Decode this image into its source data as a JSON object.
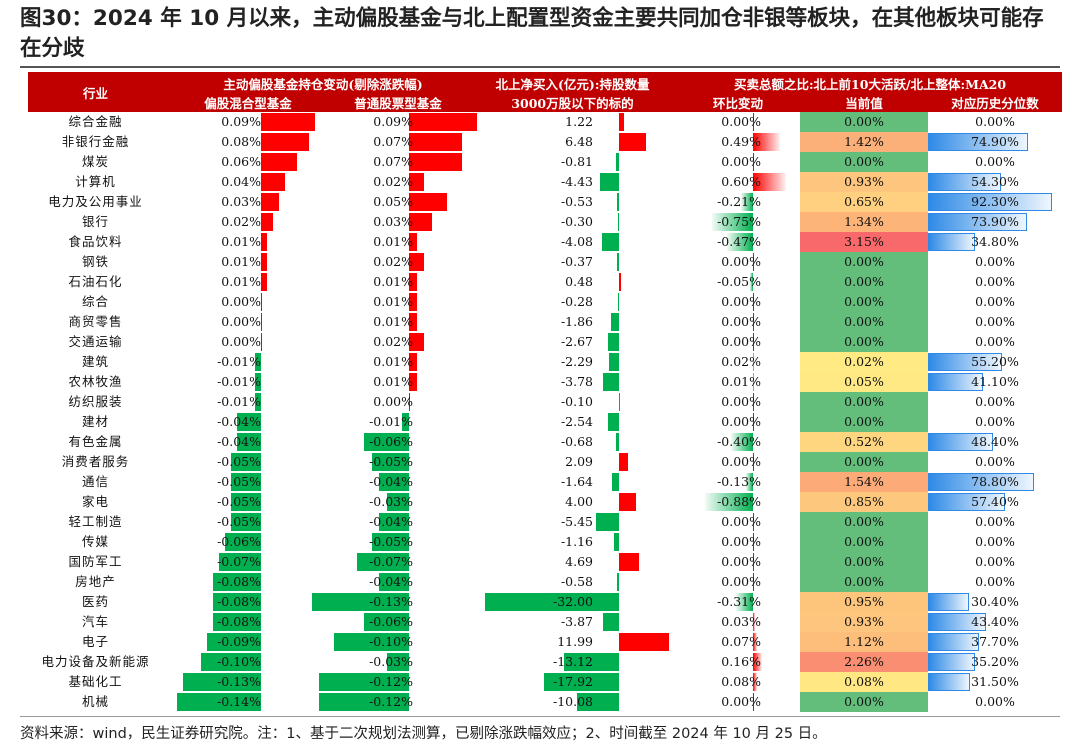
{
  "title": "图30：2024 年 10 月以来，主动偏股基金与北上配置型资金主要共同加仓非银等板块，在其他板块可能存在分歧",
  "header": {
    "industry": "行业",
    "group1": "主动偏股基金持仓变动(剔除涨跌幅)",
    "col1": "偏股混合型基金",
    "col2": "普通股票型基金",
    "group2": "北上净买入(亿元):持股数量",
    "col3": "3000万股以下的标的",
    "group3": "买卖总额之比:北上前10大活跃/北上整体:MA20",
    "col4": "环比变动",
    "col5": "当前值",
    "col6": "对应历史分位数"
  },
  "colors": {
    "header_bg": "#c00000",
    "pos_bar": "#ff0000",
    "neg_bar": "#00b050",
    "blue_bar": "#2e8ae6",
    "cell_green": "#63be7b",
    "cell_red": "#f8696b",
    "cell_yellow": "#ffeb84"
  },
  "table": [
    {
      "name": "综合金融",
      "c1": "0.09%",
      "c2": "0.09%",
      "c3": "1.22",
      "c4": "0.00%",
      "c5": "0.00%",
      "c6": "0.00%"
    },
    {
      "name": "非银行金融",
      "c1": "0.08%",
      "c2": "0.07%",
      "c3": "6.48",
      "c4": "0.49%",
      "c5": "1.42%",
      "c6": "74.90%"
    },
    {
      "name": "煤炭",
      "c1": "0.06%",
      "c2": "0.07%",
      "c3": "-0.81",
      "c4": "0.00%",
      "c5": "0.00%",
      "c6": "0.00%"
    },
    {
      "name": "计算机",
      "c1": "0.04%",
      "c2": "0.02%",
      "c3": "-4.43",
      "c4": "0.60%",
      "c5": "0.93%",
      "c6": "54.30%"
    },
    {
      "name": "电力及公用事业",
      "c1": "0.03%",
      "c2": "0.05%",
      "c3": "-0.53",
      "c4": "-0.21%",
      "c5": "0.65%",
      "c6": "92.30%"
    },
    {
      "name": "银行",
      "c1": "0.02%",
      "c2": "0.03%",
      "c3": "-0.30",
      "c4": "-0.75%",
      "c5": "1.34%",
      "c6": "73.90%"
    },
    {
      "name": "食品饮料",
      "c1": "0.01%",
      "c2": "0.01%",
      "c3": "-4.08",
      "c4": "-0.47%",
      "c5": "3.15%",
      "c6": "34.80%"
    },
    {
      "name": "钢铁",
      "c1": "0.01%",
      "c2": "0.02%",
      "c3": "-0.37",
      "c4": "0.00%",
      "c5": "0.00%",
      "c6": "0.00%"
    },
    {
      "name": "石油石化",
      "c1": "0.01%",
      "c2": "0.01%",
      "c3": "0.48",
      "c4": "-0.05%",
      "c5": "0.00%",
      "c6": "0.00%"
    },
    {
      "name": "综合",
      "c1": "0.00%",
      "c2": "0.01%",
      "c3": "-0.28",
      "c4": "0.00%",
      "c5": "0.00%",
      "c6": "0.00%"
    },
    {
      "name": "商贸零售",
      "c1": "0.00%",
      "c2": "0.01%",
      "c3": "-1.86",
      "c4": "0.00%",
      "c5": "0.00%",
      "c6": "0.00%"
    },
    {
      "name": "交通运输",
      "c1": "0.00%",
      "c2": "0.02%",
      "c3": "-2.67",
      "c4": "0.00%",
      "c5": "0.00%",
      "c6": "0.00%"
    },
    {
      "name": "建筑",
      "c1": "-0.01%",
      "c2": "0.01%",
      "c3": "-2.29",
      "c4": "0.02%",
      "c5": "0.02%",
      "c6": "55.20%"
    },
    {
      "name": "农林牧渔",
      "c1": "-0.01%",
      "c2": "0.01%",
      "c3": "-3.78",
      "c4": "0.01%",
      "c5": "0.05%",
      "c6": "41.10%"
    },
    {
      "name": "纺织服装",
      "c1": "-0.01%",
      "c2": "0.00%",
      "c3": "-0.10",
      "c4": "0.00%",
      "c5": "0.00%",
      "c6": "0.00%"
    },
    {
      "name": "建材",
      "c1": "-0.04%",
      "c2": "-0.01%",
      "c3": "-2.54",
      "c4": "0.00%",
      "c5": "0.00%",
      "c6": "0.00%"
    },
    {
      "name": "有色金属",
      "c1": "-0.04%",
      "c2": "-0.06%",
      "c3": "-0.68",
      "c4": "-0.40%",
      "c5": "0.52%",
      "c6": "48.40%"
    },
    {
      "name": "消费者服务",
      "c1": "-0.05%",
      "c2": "-0.05%",
      "c3": "2.09",
      "c4": "0.00%",
      "c5": "0.00%",
      "c6": "0.00%"
    },
    {
      "name": "通信",
      "c1": "-0.05%",
      "c2": "-0.04%",
      "c3": "-1.64",
      "c4": "-0.13%",
      "c5": "1.54%",
      "c6": "78.80%"
    },
    {
      "name": "家电",
      "c1": "-0.05%",
      "c2": "-0.03%",
      "c3": "4.00",
      "c4": "-0.88%",
      "c5": "0.85%",
      "c6": "57.40%"
    },
    {
      "name": "轻工制造",
      "c1": "-0.05%",
      "c2": "-0.04%",
      "c3": "-5.45",
      "c4": "0.00%",
      "c5": "0.00%",
      "c6": "0.00%"
    },
    {
      "name": "传媒",
      "c1": "-0.06%",
      "c2": "-0.05%",
      "c3": "-1.16",
      "c4": "0.00%",
      "c5": "0.00%",
      "c6": "0.00%"
    },
    {
      "name": "国防军工",
      "c1": "-0.07%",
      "c2": "-0.07%",
      "c3": "4.69",
      "c4": "0.00%",
      "c5": "0.00%",
      "c6": "0.00%"
    },
    {
      "name": "房地产",
      "c1": "-0.08%",
      "c2": "-0.04%",
      "c3": "-0.58",
      "c4": "0.00%",
      "c5": "0.00%",
      "c6": "0.00%"
    },
    {
      "name": "医药",
      "c1": "-0.08%",
      "c2": "-0.13%",
      "c3": "-32.00",
      "c4": "-0.31%",
      "c5": "0.95%",
      "c6": "30.40%"
    },
    {
      "name": "汽车",
      "c1": "-0.08%",
      "c2": "-0.06%",
      "c3": "-3.87",
      "c4": "0.03%",
      "c5": "0.93%",
      "c6": "43.40%"
    },
    {
      "name": "电子",
      "c1": "-0.09%",
      "c2": "-0.10%",
      "c3": "11.99",
      "c4": "0.07%",
      "c5": "1.12%",
      "c6": "37.70%"
    },
    {
      "name": "电力设备及新能源",
      "c1": "-0.10%",
      "c2": "-0.03%",
      "c3": "-13.12",
      "c4": "0.16%",
      "c5": "2.26%",
      "c6": "35.20%"
    },
    {
      "name": "基础化工",
      "c1": "-0.13%",
      "c2": "-0.12%",
      "c3": "-17.92",
      "c4": "0.08%",
      "c5": "0.08%",
      "c6": "31.50%"
    },
    {
      "name": "机械",
      "c1": "-0.14%",
      "c2": "-0.12%",
      "c3": "-10.08",
      "c4": "0.00%",
      "c5": "0.00%",
      "c6": "0.00%"
    }
  ],
  "footer": "资料来源：wind，民生证券研究院。注：1、基于二次规划法测算，已剔除涨跌幅效应；2、时间截至 2024 年 10 月 25 日。"
}
